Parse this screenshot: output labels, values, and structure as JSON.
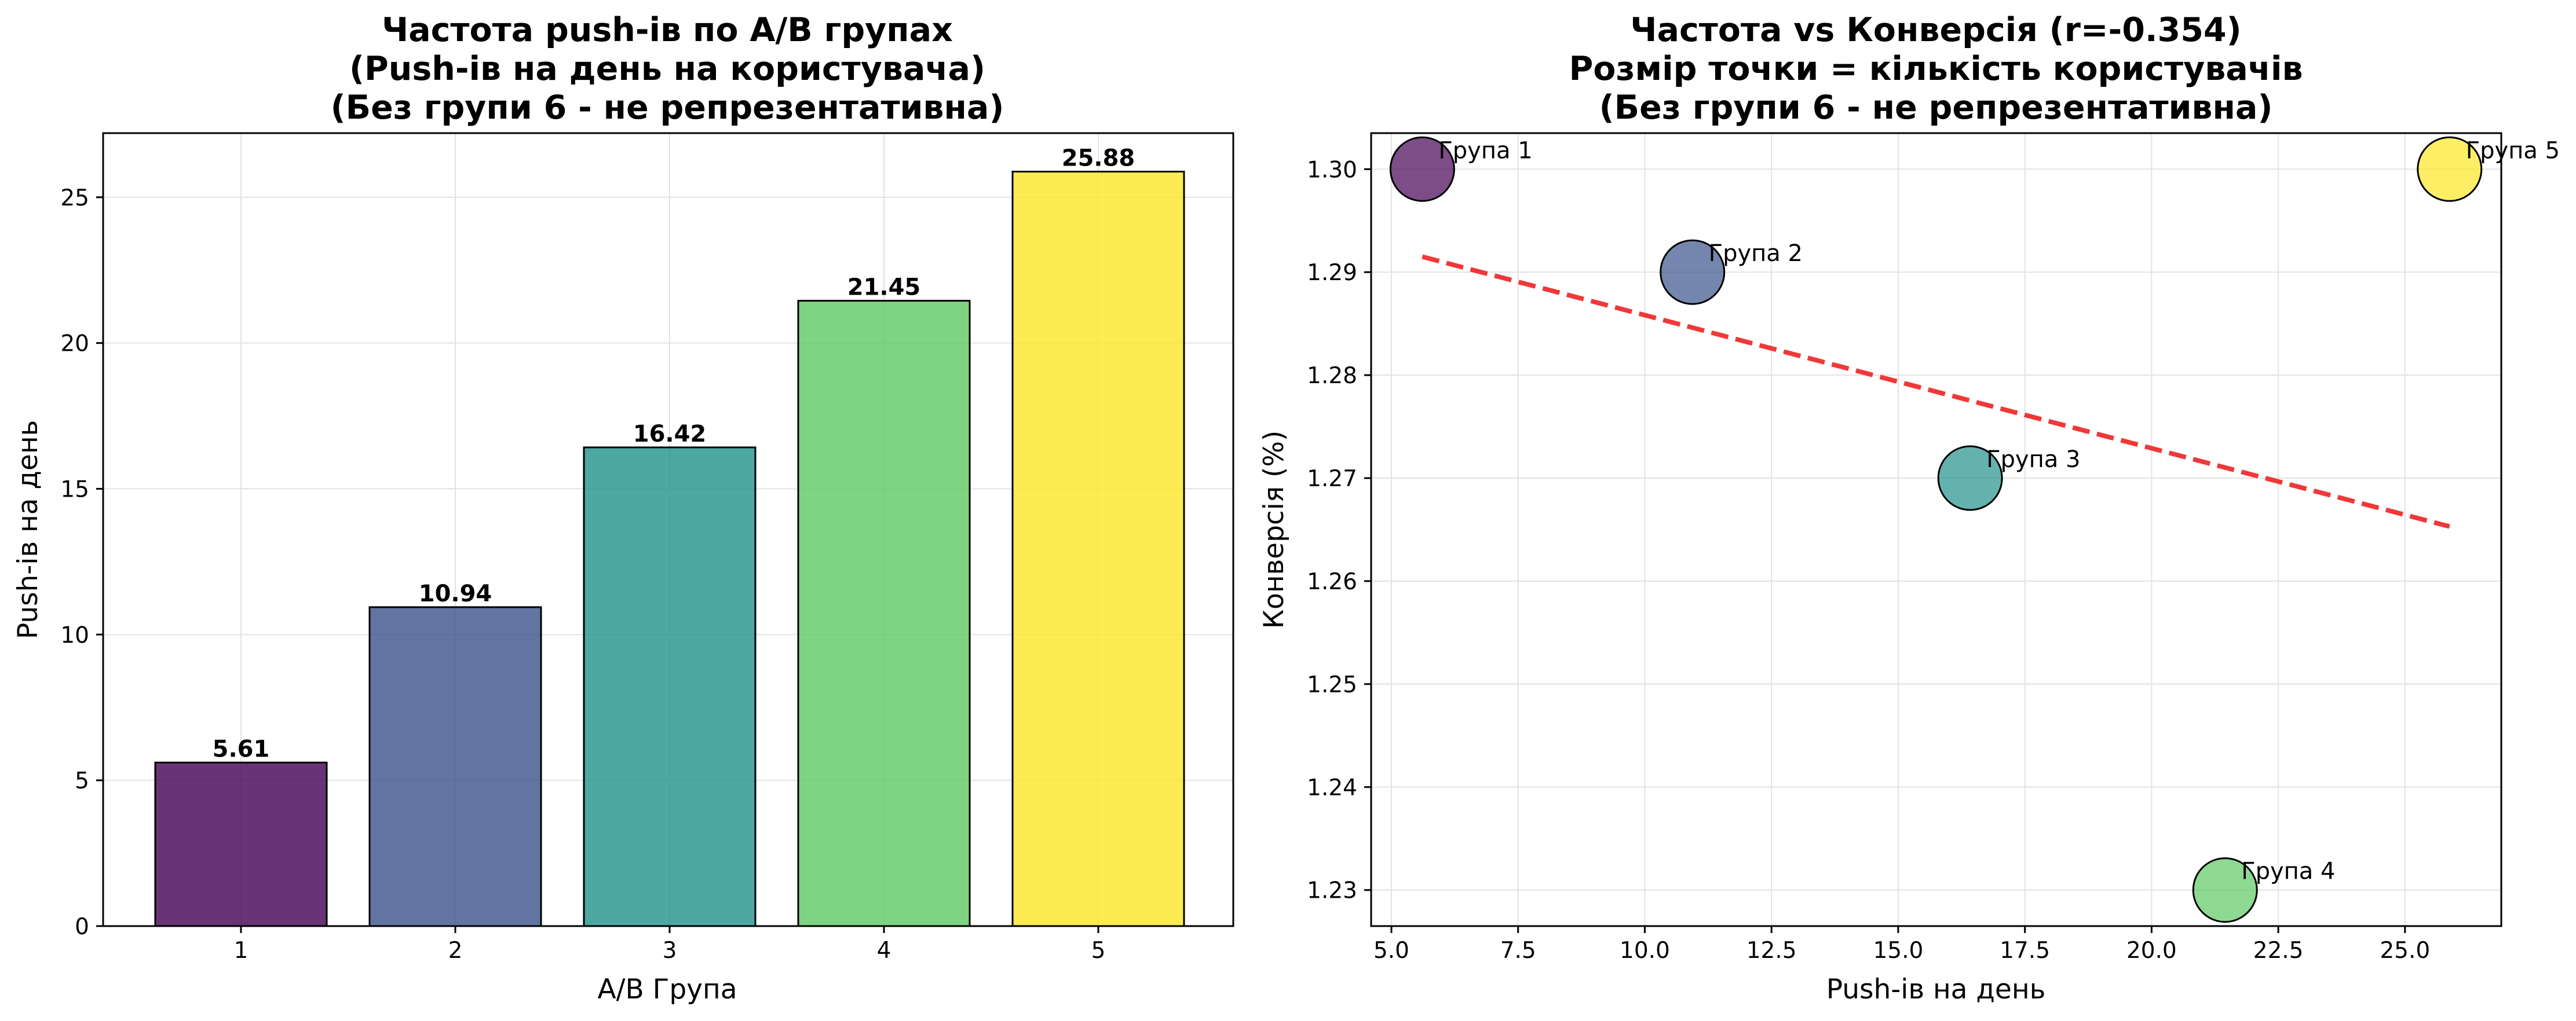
{
  "chart_data": [
    {
      "type": "bar",
      "title": [
        "Частота push-ів по A/B групах",
        "(Push-ів на день на користувача)",
        "(Без групи 6 - не репрезентативна)"
      ],
      "xlabel": "A/B Група",
      "ylabel": "Push-ів на день",
      "categories": [
        "1",
        "2",
        "3",
        "4",
        "5"
      ],
      "values": [
        5.61,
        10.94,
        16.42,
        21.45,
        25.88
      ],
      "value_labels": [
        "5.61",
        "10.94",
        "16.42",
        "21.45",
        "25.88"
      ],
      "colors": [
        "#440154",
        "#3b528b",
        "#21918c",
        "#5ec962",
        "#fde725"
      ],
      "ylim": [
        0,
        27.2
      ],
      "yticks": [
        0,
        5,
        10,
        15,
        20,
        25
      ],
      "ytick_labels": [
        "0",
        "5",
        "10",
        "15",
        "20",
        "25"
      ],
      "grid": true
    },
    {
      "type": "scatter",
      "title": [
        "Частота vs Конверсія (r=-0.354)",
        "Розмір точки = кількість користувачів",
        "(Без групи 6 - не репрезентативна)"
      ],
      "xlabel": "Push-ів на день",
      "ylabel": "Конверсія (%)",
      "points": [
        {
          "label": "Група 1",
          "x": 5.61,
          "y": 1.3,
          "color": "#440154"
        },
        {
          "label": "Група 2",
          "x": 10.94,
          "y": 1.29,
          "color": "#3b528b"
        },
        {
          "label": "Група 3",
          "x": 16.42,
          "y": 1.27,
          "color": "#21918c"
        },
        {
          "label": "Група 4",
          "x": 21.45,
          "y": 1.23,
          "color": "#5ec962"
        },
        {
          "label": "Група 5",
          "x": 25.88,
          "y": 1.3,
          "color": "#fde725"
        }
      ],
      "trendline": {
        "x": [
          5.61,
          25.88
        ],
        "y": [
          1.2915,
          1.2653
        ],
        "color": "#ee2222",
        "style": "dashed"
      },
      "xlim": [
        4.6,
        26.9
      ],
      "ylim": [
        1.2265,
        1.3035
      ],
      "xticks": [
        5.0,
        7.5,
        10.0,
        12.5,
        15.0,
        17.5,
        20.0,
        22.5,
        25.0
      ],
      "xtick_labels": [
        "5.0",
        "7.5",
        "10.0",
        "12.5",
        "15.0",
        "17.5",
        "20.0",
        "22.5",
        "25.0"
      ],
      "yticks": [
        1.23,
        1.24,
        1.25,
        1.26,
        1.27,
        1.28,
        1.29,
        1.3
      ],
      "ytick_labels": [
        "1.23",
        "1.24",
        "1.25",
        "1.26",
        "1.27",
        "1.28",
        "1.29",
        "1.30"
      ],
      "grid": true
    }
  ]
}
